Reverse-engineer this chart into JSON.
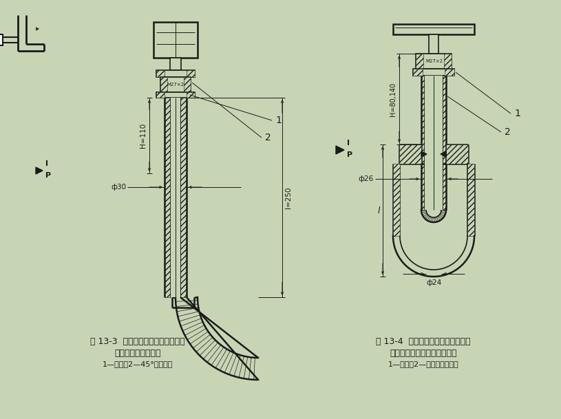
{
  "bg_color": "#c8d5b5",
  "line_color": "#1a1a1a",
  "fig_width": 8.15,
  "fig_height": 6.09,
  "caption1_line1": "图 13-3  双金属温度计在钢肘管上安",
  "caption1_line2": "装图（外螺纹接头）",
  "caption1_line3": "1—垫片；2—45°角连接头",
  "caption2_line1": "图 13-4  双金属温度计在钢管道上安",
  "caption2_line2": "装图（外螺纹接头）（套管）",
  "caption2_line3": "1—垫片；2—温度计保护套管",
  "dim_H110": "H=110",
  "dim_phi30": "ф30",
  "dim_l250": "l=250",
  "dim_M27x2_L": "M27×2",
  "dim_M27x2_R": "M27×2",
  "dim_H8014": "H=80,140",
  "dim_phi26": "ф26",
  "dim_phi24": "ф24"
}
